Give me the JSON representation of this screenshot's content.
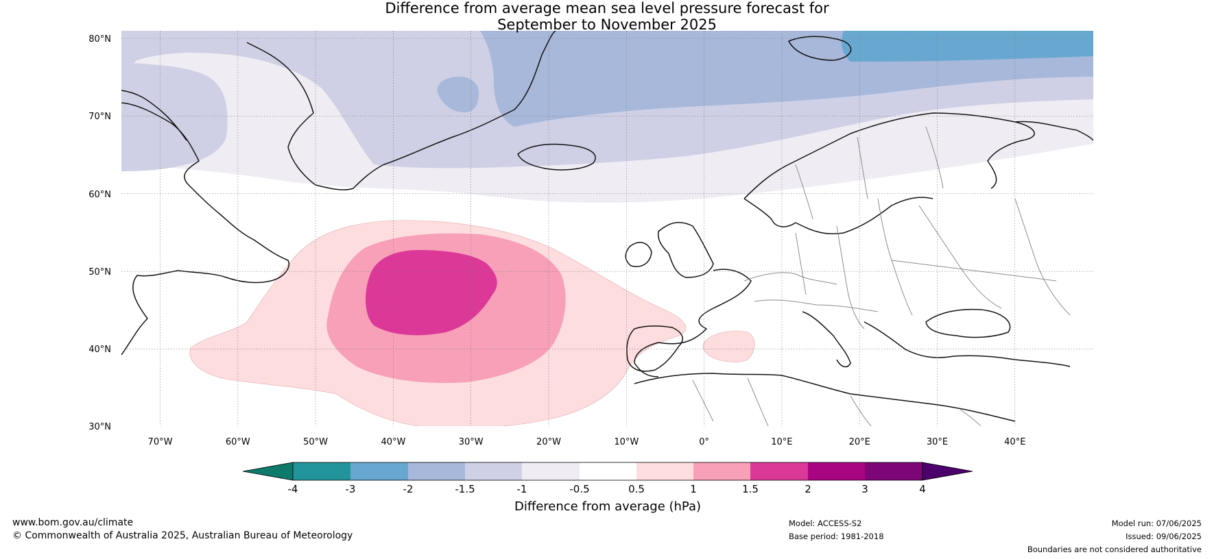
{
  "title": {
    "line1": "Difference from average mean sea level pressure forecast for",
    "line2": "September to November 2025"
  },
  "map": {
    "lat_labels": [
      "80°N",
      "70°N",
      "60°N",
      "50°N",
      "40°N",
      "30°N"
    ],
    "lon_labels": [
      "70°W",
      "60°W",
      "50°W",
      "40°W",
      "30°W",
      "20°W",
      "10°W",
      "0°",
      "10°E",
      "20°E",
      "30°E",
      "40°E"
    ],
    "anomaly_regions": [
      {
        "area": "Greenland / Arctic north Atlantic",
        "range_hPa": "-1 to -0.5"
      },
      {
        "area": "Northern Greenland to Svalbard",
        "range_hPa": "-1.5 to -1"
      },
      {
        "area": "Norwegian / Barents Sea",
        "range_hPa": "-2 to -1.5"
      },
      {
        "area": "North of Svalbard",
        "range_hPa": "-3 to -2"
      },
      {
        "area": "Central North Atlantic",
        "range_hPa": "0.5 to 1"
      },
      {
        "area": "Central North Atlantic core",
        "range_hPa": "1 to 1.5"
      },
      {
        "area": "Central North Atlantic peak",
        "range_hPa": "1.5 to 2"
      },
      {
        "area": "Western Mediterranean",
        "range_hPa": "0.5 to 1"
      }
    ]
  },
  "colorbar": {
    "ticks": [
      "-4",
      "-3",
      "-2",
      "-1.5",
      "-1",
      "-0.5",
      "0.5",
      "1",
      "1.5",
      "2",
      "3",
      "4"
    ],
    "colors": [
      "#0e7a6c",
      "#22959c",
      "#68a8d0",
      "#a7b8da",
      "#cfd0e5",
      "#f0ecf4",
      "#ffffff",
      "#fdddde",
      "#f7a0b8",
      "#dc3898",
      "#a90582",
      "#7d0578",
      "#4c006b"
    ],
    "label": "Difference from average (hPa)"
  },
  "footer": {
    "website": "www.bom.gov.au/climate",
    "copyright": "© Commonwealth of Australia 2025, Australian Bureau of Meteorology",
    "model": "Model: ACCESS-S2",
    "base_period": "Base period: 1981-2018",
    "model_run": "Model run: 07/06/2025",
    "issued": "Issued: 09/06/2025",
    "disclaimer": "Boundaries are not considered authoritative"
  }
}
